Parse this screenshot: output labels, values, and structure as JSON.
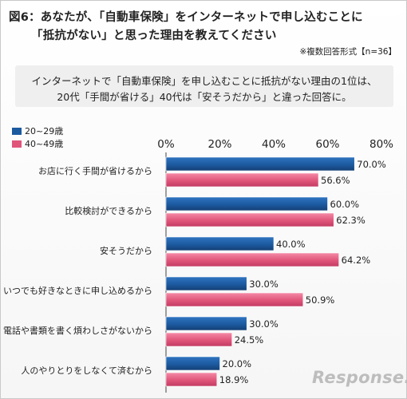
{
  "header": {
    "title_line1": "図6：あなたが、「自動車保険」をインターネットで申し込むことに",
    "title_line2": "「抵抗がない」と思った理由を教えてください",
    "note": "※複数回答形式【n=36】"
  },
  "summary": {
    "line1": "インターネットで「自動車保険」を申し込むことに抵抗がない理由の1位は、",
    "line2": "20代「手間が省ける」40代は「安そうだから」と違った回答に。"
  },
  "watermark": "Response.",
  "chart_data": {
    "type": "bar",
    "orientation": "horizontal",
    "categories": [
      "お店に行く手間が省けるから",
      "比較検討ができるから",
      "安そうだから",
      "いつでも好きなときに申し込めるから",
      "電話や書類を書く煩わしさがないから",
      "人のやりとりをしなくて済むから"
    ],
    "series": [
      {
        "name": "20~29歳",
        "color": "#1c5aa0",
        "values": [
          70.0,
          60.0,
          40.0,
          30.0,
          30.0,
          20.0
        ],
        "labels": [
          "70.0%",
          "60.0%",
          "40.0%",
          "30.0%",
          "30.0%",
          "20.0%"
        ]
      },
      {
        "name": "40~49歳",
        "color": "#e0557a",
        "values": [
          56.6,
          62.3,
          64.2,
          50.9,
          24.5,
          18.9
        ],
        "labels": [
          "56.6%",
          "62.3%",
          "64.2%",
          "50.9%",
          "24.5%",
          "18.9%"
        ]
      }
    ],
    "xlim": [
      0,
      80
    ],
    "xticks": [
      0,
      20,
      40,
      60,
      80
    ],
    "xtick_labels": [
      "0%",
      "20%",
      "40%",
      "60%",
      "80%"
    ],
    "axis_position": "top",
    "legend_position": "top-left",
    "grid": false
  }
}
